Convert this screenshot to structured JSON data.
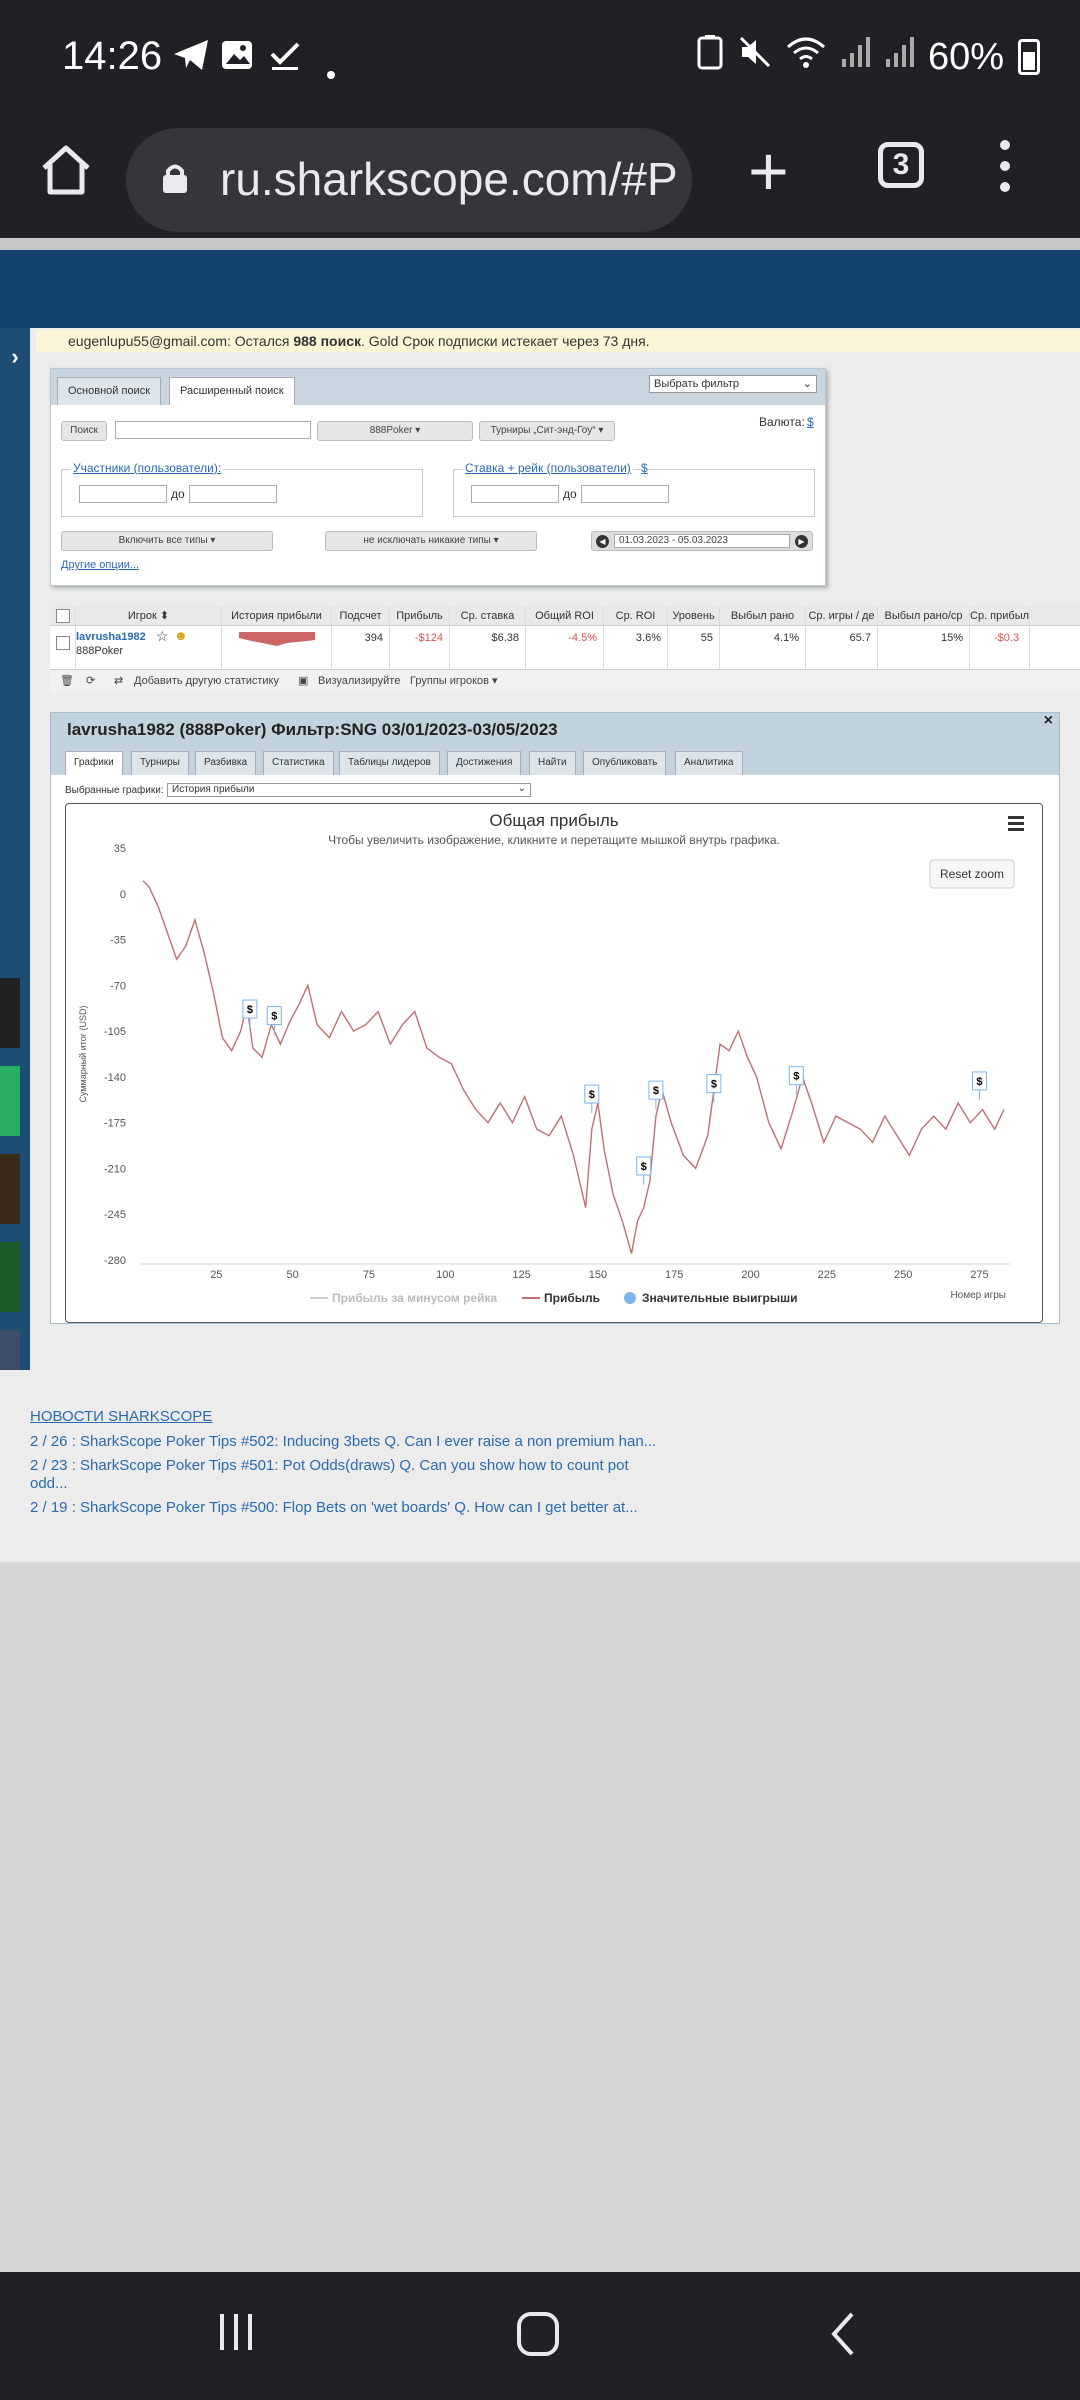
{
  "status": {
    "time": "14:26",
    "battery": "60%"
  },
  "browser": {
    "url": "ru.sharkscope.com/#P",
    "tab_count": "3"
  },
  "notice": {
    "email": "eugenlupu55@gmail.com:",
    "left_text": "Остался",
    "count": "988 поиск",
    "rest": ". Gold Срок подписки истекает через 73 дня."
  },
  "search": {
    "tab_basic": "Основной поиск",
    "tab_advanced": "Расширенный поиск",
    "filter_select": "Выбрать фильтр",
    "search_button": "Поиск",
    "network": "888Poker",
    "tournament_type": "Турниры „Сит-энд-Гоу“",
    "currency_label": "Валюта:",
    "currency_symbol": "$",
    "participants_label": "Участники (пользователи):",
    "to1": "до",
    "stake_label": "Ставка + рейк (пользователи)",
    "stake_currency": "$",
    "to2": "до",
    "include_types": "Включить все типы",
    "exclude_types": "не исключать никакие типы",
    "date_range": "01.03.2023 - 05.03.2023",
    "other_options": "Другие опции..."
  },
  "results": {
    "headers": [
      "Игрок",
      "История прибыли",
      "Подсчет",
      "Прибыль",
      "Ср. ставка",
      "Общий ROI",
      "Ср. ROI",
      "Уровень",
      "Выбыл рано",
      "Ср. игры / де",
      "Выбыл рано/ср",
      "Ср. прибыль"
    ],
    "player_name": "lavrusha1982",
    "player_network": "888Poker",
    "count": "394",
    "profit": "-$124",
    "avg_stake": "$6.38",
    "total_roi": "-4.5%",
    "avg_roi": "3.6%",
    "level": "55",
    "early_out": "4.1%",
    "avg_games": "65.7",
    "early_out_avg": "15%",
    "avg_profit": "-$0.3",
    "tool_add_stat": "Добавить другую статистику",
    "tool_visualize": "Визуализируйте",
    "tool_groups": "Группы игроков"
  },
  "chart_panel": {
    "title": "lavrusha1982 (888Poker) Фильтр:SNG 03/01/2023-03/05/2023",
    "tabs": [
      "Графики",
      "Турниры",
      "Разбивка",
      "Статистика",
      "Таблицы лидеров",
      "Достижения",
      "Найти",
      "Опубликовать",
      "Аналитика"
    ],
    "selected_charts_label": "Выбранные графики:",
    "selected_chart": "История прибыли",
    "reset_zoom": "Reset zoom"
  },
  "chart_data": {
    "type": "line",
    "title": "Общая прибыль",
    "subtitle": "Чтобы увеличить изображение, кликните и перетащите мышкой внутрь графика.",
    "xlabel": "Номер игры",
    "ylabel": "Суммарный итог (USD)",
    "xlim": [
      0,
      285
    ],
    "ylim": [
      -280,
      35
    ],
    "x_ticks": [
      25,
      50,
      75,
      100,
      125,
      150,
      175,
      200,
      225,
      250,
      275
    ],
    "y_ticks": [
      35,
      0,
      -35,
      -70,
      -105,
      -140,
      -175,
      -210,
      -245,
      -280
    ],
    "legend": [
      "Прибыль за минусом рейка",
      "Прибыль",
      "Значительные выигрыши"
    ],
    "legend_position": "bottom",
    "series": [
      {
        "name": "Прибыль",
        "x": [
          1,
          3,
          6,
          9,
          12,
          15,
          18,
          21,
          24,
          27,
          30,
          33,
          35,
          37,
          40,
          43,
          46,
          49,
          52,
          55,
          58,
          62,
          66,
          70,
          74,
          78,
          82,
          86,
          90,
          94,
          98,
          102,
          106,
          110,
          114,
          118,
          122,
          126,
          130,
          134,
          138,
          142,
          146,
          148,
          150,
          152,
          155,
          158,
          161,
          163,
          165,
          167,
          169,
          171,
          174,
          178,
          182,
          186,
          188,
          190,
          193,
          196,
          199,
          202,
          206,
          210,
          214,
          217,
          220,
          224,
          228,
          232,
          236,
          240,
          244,
          248,
          252,
          256,
          260,
          264,
          268,
          272,
          276,
          280,
          283
        ],
        "values": [
          10,
          5,
          -10,
          -30,
          -50,
          -40,
          -20,
          -45,
          -75,
          -110,
          -120,
          -105,
          -85,
          -118,
          -125,
          -100,
          -115,
          -98,
          -85,
          -70,
          -100,
          -110,
          -90,
          -105,
          -100,
          -90,
          -115,
          -100,
          -90,
          -118,
          -125,
          -130,
          -150,
          -165,
          -175,
          -160,
          -175,
          -155,
          -180,
          -185,
          -170,
          -200,
          -240,
          -180,
          -160,
          -195,
          -230,
          -250,
          -275,
          -250,
          -240,
          -220,
          -170,
          -150,
          -175,
          -200,
          -210,
          -185,
          -150,
          -115,
          -120,
          -105,
          -125,
          -140,
          -175,
          -195,
          -165,
          -140,
          -160,
          -190,
          -170,
          -175,
          -180,
          -190,
          -170,
          -185,
          -200,
          -180,
          -170,
          -180,
          -160,
          -175,
          -165,
          -180,
          -165
        ]
      }
    ],
    "big_wins": [
      {
        "x": 36,
        "y": -95,
        "label": "$"
      },
      {
        "x": 44,
        "y": -100,
        "label": "$"
      },
      {
        "x": 148,
        "y": -160,
        "label": "$"
      },
      {
        "x": 165,
        "y": -215,
        "label": "$"
      },
      {
        "x": 169,
        "y": -157,
        "label": "$"
      },
      {
        "x": 188,
        "y": -152,
        "label": "$"
      },
      {
        "x": 215,
        "y": -146,
        "label": "$"
      },
      {
        "x": 275,
        "y": -150,
        "label": "$"
      }
    ]
  },
  "news": {
    "title": "НОВОСТИ SHARKSCOPE",
    "items": [
      "2 / 26 : SharkScope Poker Tips #502: Inducing 3bets Q. Can I ever raise a non premium han...",
      "2 / 23 : SharkScope Poker Tips #501: Pot Odds(draws) Q. Can you show how to count pot odd...",
      "2 / 19 : SharkScope Poker Tips #500: Flop Bets on 'wet boards' Q. How can I get better at..."
    ]
  },
  "colors": {
    "status_bg": "#202124",
    "brand_blue": "#12446e",
    "line": "#c07070",
    "big_win_marker": "#7cb5ec"
  }
}
